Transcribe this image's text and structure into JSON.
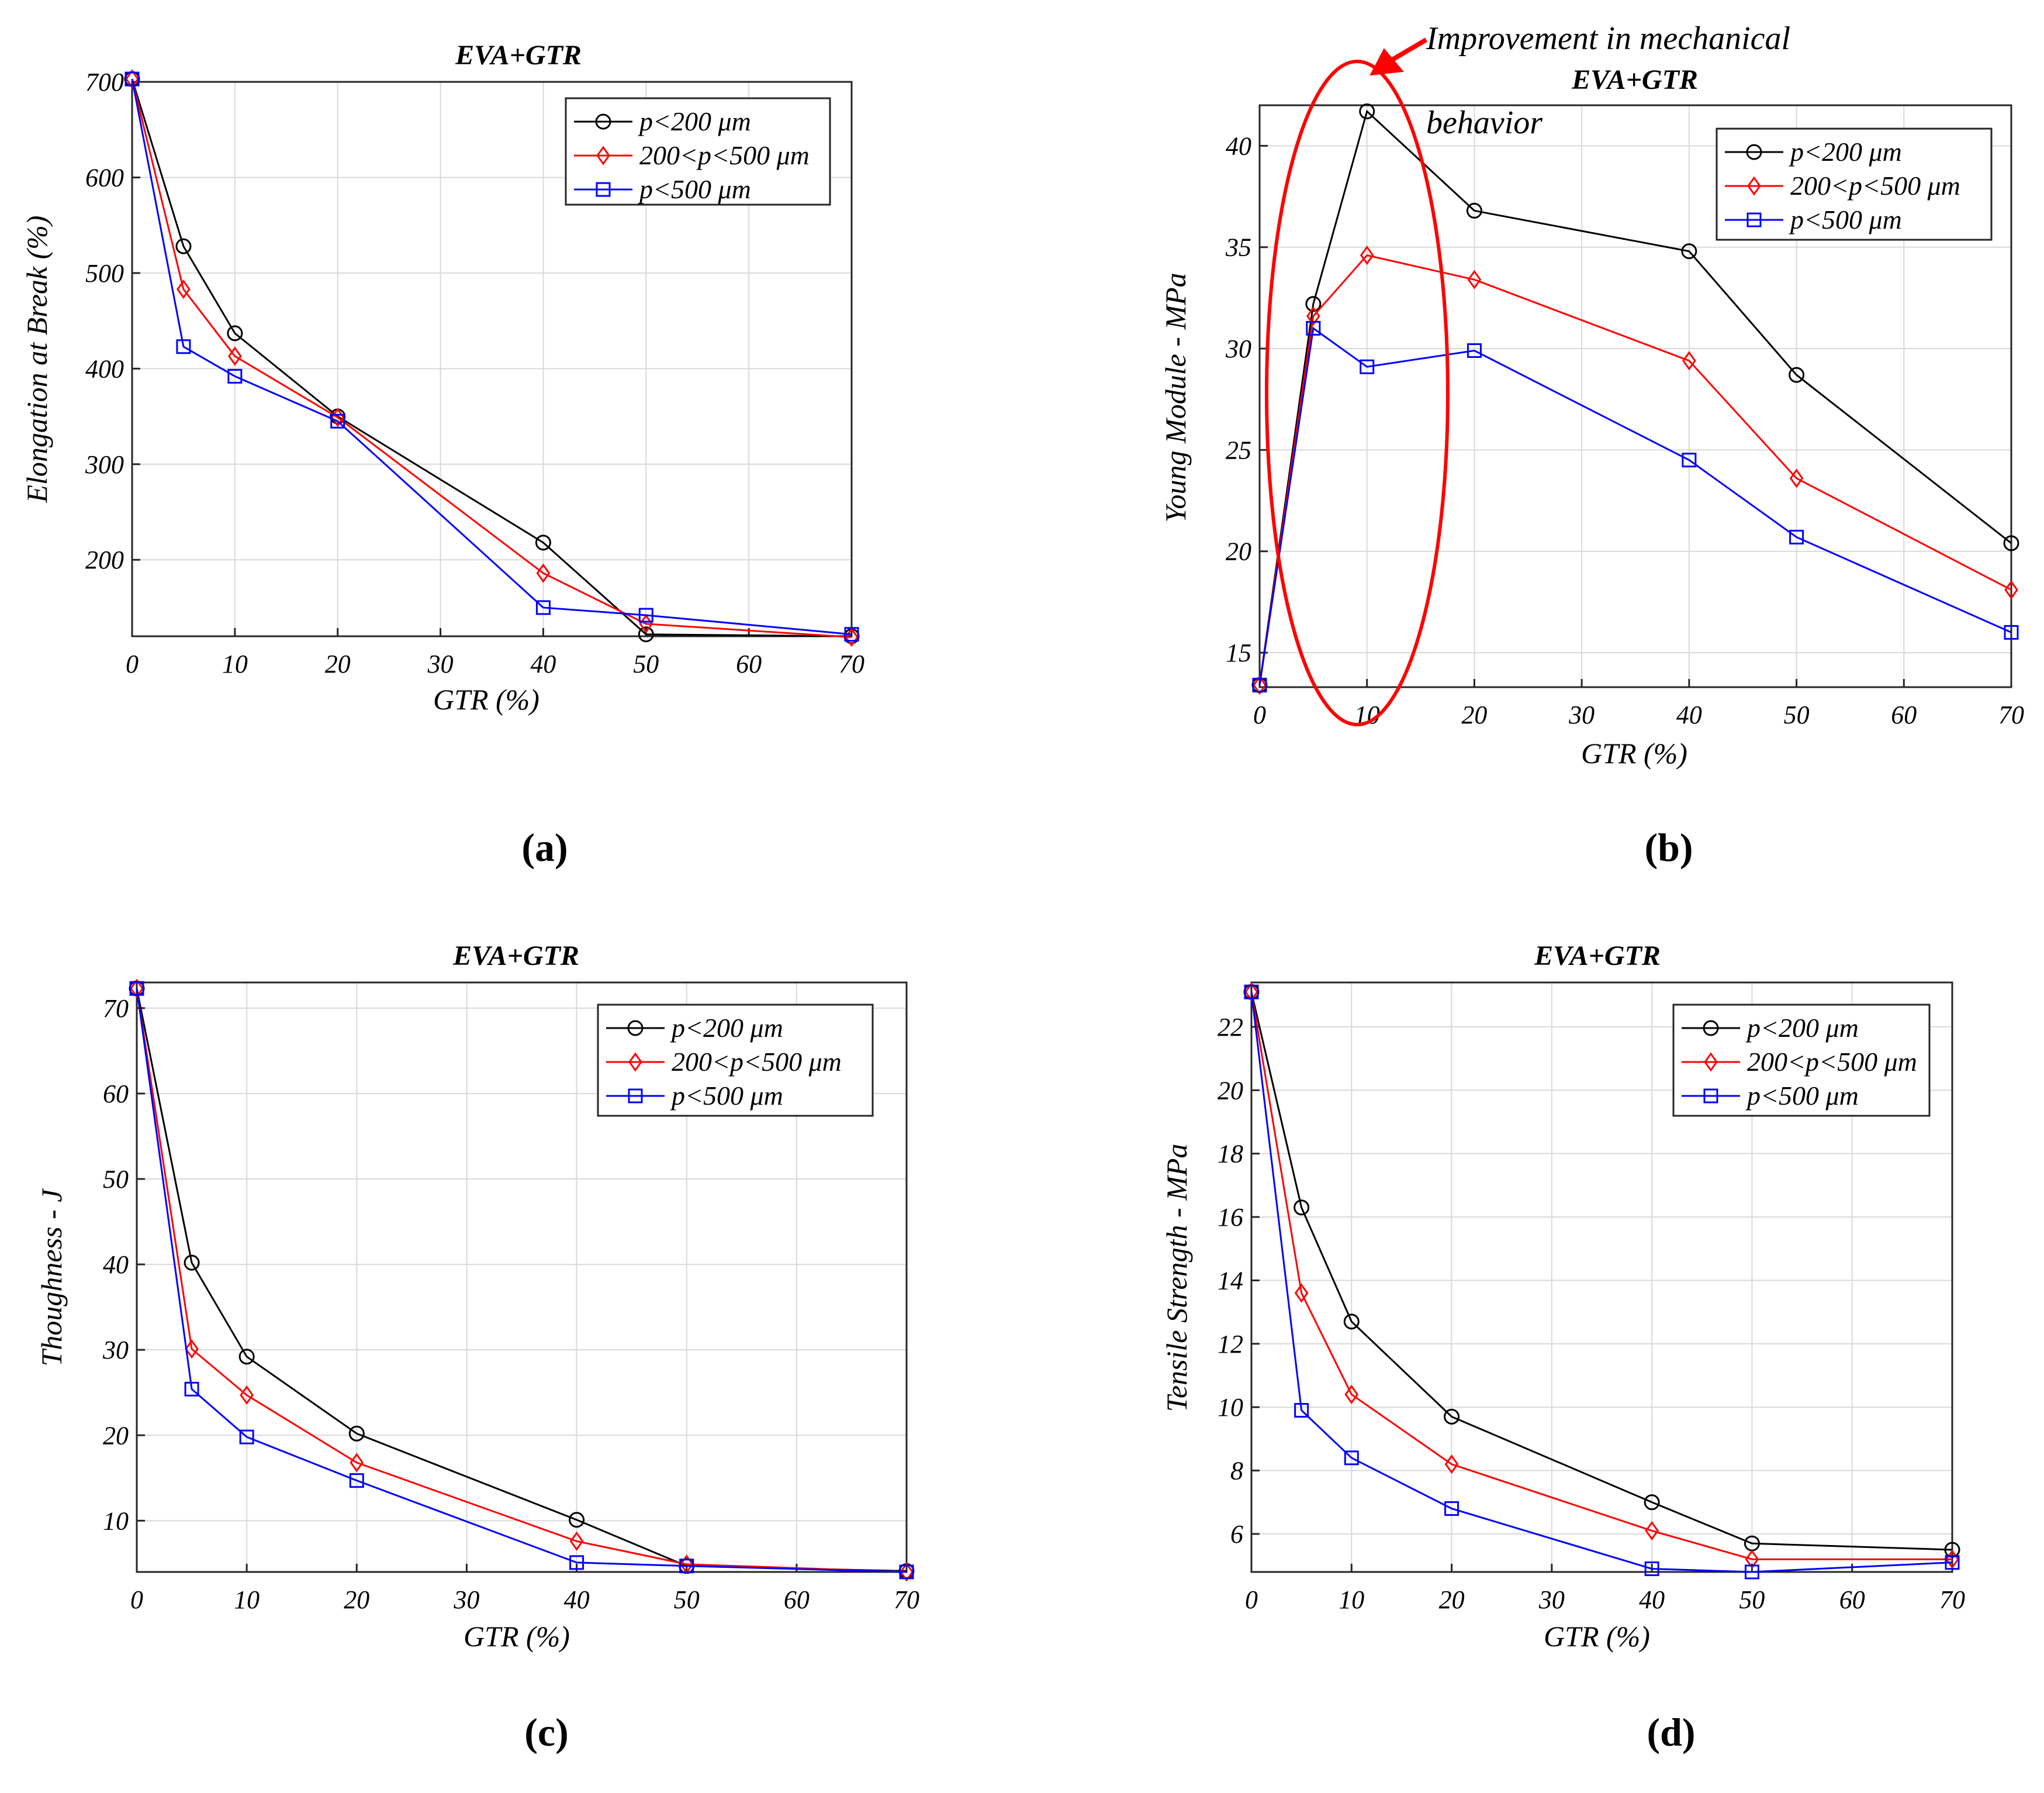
{
  "chart_data": [
    {
      "id": "a",
      "type": "line",
      "panel_label": "(a)",
      "title": "EVA+GTR",
      "xlabel": "GTR (%)",
      "ylabel": "Elongation at Break (%)",
      "xlim": [
        0,
        70
      ],
      "ylim": [
        120,
        700
      ],
      "xticks": [
        0,
        10,
        20,
        30,
        40,
        50,
        60,
        70
      ],
      "yticks": [
        200,
        300,
        400,
        500,
        600,
        700
      ],
      "grid": true,
      "legend_position": "top-right",
      "series": [
        {
          "name": "p<200 μm",
          "marker": "circle",
          "color": "#000000",
          "x": [
            0,
            5,
            10,
            20,
            40,
            50,
            70
          ],
          "y": [
            703,
            528,
            437,
            350,
            218,
            122,
            120
          ]
        },
        {
          "name": "200<p<500 μm",
          "marker": "diamond",
          "color": "#ff0000",
          "x": [
            0,
            5,
            10,
            20,
            40,
            50,
            70
          ],
          "y": [
            703,
            483,
            413,
            349,
            186,
            133,
            119
          ]
        },
        {
          "name": "p<500 μm",
          "marker": "square",
          "color": "#0000ff",
          "x": [
            0,
            5,
            10,
            20,
            40,
            50,
            70
          ],
          "y": [
            703,
            423,
            392,
            345,
            150,
            142,
            122
          ]
        }
      ]
    },
    {
      "id": "b",
      "type": "line",
      "panel_label": "(b)",
      "title": "EVA+GTR",
      "xlabel": "GTR (%)",
      "ylabel": "Young Module - MPa",
      "xlim": [
        0,
        70
      ],
      "ylim": [
        13.3,
        42
      ],
      "xticks": [
        0,
        10,
        20,
        30,
        40,
        50,
        60,
        70
      ],
      "yticks": [
        15,
        20,
        25,
        30,
        35,
        40
      ],
      "grid": true,
      "legend_position": "top-right",
      "annotation": {
        "line1": "Improvement   in   mechanical",
        "line2": "behavior"
      },
      "series": [
        {
          "name": "p<200 μm",
          "marker": "circle",
          "color": "#000000",
          "x": [
            0,
            5,
            10,
            20,
            40,
            50,
            70
          ],
          "y": [
            13.4,
            32.2,
            41.7,
            36.8,
            34.8,
            28.7,
            20.4
          ]
        },
        {
          "name": "200<p<500 μm",
          "marker": "diamond",
          "color": "#ff0000",
          "x": [
            0,
            5,
            10,
            20,
            40,
            50,
            70
          ],
          "y": [
            13.4,
            31.6,
            34.6,
            33.4,
            29.4,
            23.6,
            18.1
          ]
        },
        {
          "name": "p<500 μm",
          "marker": "square",
          "color": "#0000ff",
          "x": [
            0,
            5,
            10,
            20,
            40,
            50,
            70
          ],
          "y": [
            13.4,
            31.0,
            29.1,
            29.9,
            24.5,
            20.7,
            16.0
          ]
        }
      ]
    },
    {
      "id": "c",
      "type": "line",
      "panel_label": "(c)",
      "title": "EVA+GTR",
      "xlabel": "GTR (%)",
      "ylabel": "Thoughness - J",
      "xlim": [
        0,
        70
      ],
      "ylim": [
        4,
        73
      ],
      "xticks": [
        0,
        10,
        20,
        30,
        40,
        50,
        60,
        70
      ],
      "yticks": [
        10,
        20,
        30,
        40,
        50,
        60,
        70
      ],
      "grid": true,
      "legend_position": "top-right",
      "series": [
        {
          "name": "p<200 μm",
          "marker": "circle",
          "color": "#000000",
          "x": [
            0,
            5,
            10,
            20,
            40,
            50,
            70
          ],
          "y": [
            72.3,
            40.2,
            29.2,
            20.2,
            10.1,
            4.7,
            4.1
          ]
        },
        {
          "name": "200<p<500 μm",
          "marker": "diamond",
          "color": "#ff0000",
          "x": [
            0,
            5,
            10,
            20,
            40,
            50,
            70
          ],
          "y": [
            72.3,
            30.1,
            24.7,
            16.8,
            7.6,
            4.9,
            4.0
          ]
        },
        {
          "name": "p<500 μm",
          "marker": "square",
          "color": "#0000ff",
          "x": [
            0,
            5,
            10,
            20,
            40,
            50,
            70
          ],
          "y": [
            72.3,
            25.4,
            19.8,
            14.7,
            5.1,
            4.7,
            4.0
          ]
        }
      ]
    },
    {
      "id": "d",
      "type": "line",
      "panel_label": "(d)",
      "title": "EVA+GTR",
      "xlabel": "GTR (%)",
      "ylabel": "Tensile Strength - MPa",
      "xlim": [
        0,
        70
      ],
      "ylim": [
        4.8,
        23.4
      ],
      "xticks": [
        0,
        10,
        20,
        30,
        40,
        50,
        60,
        70
      ],
      "yticks": [
        6,
        8,
        10,
        12,
        14,
        16,
        18,
        20,
        22
      ],
      "grid": true,
      "legend_position": "top-right",
      "series": [
        {
          "name": "p<200 μm",
          "marker": "circle",
          "color": "#000000",
          "x": [
            0,
            5,
            10,
            20,
            40,
            50,
            70
          ],
          "y": [
            23.1,
            16.3,
            12.7,
            9.7,
            7.0,
            5.7,
            5.5
          ]
        },
        {
          "name": "200<p<500 μm",
          "marker": "diamond",
          "color": "#ff0000",
          "x": [
            0,
            5,
            10,
            20,
            40,
            50,
            70
          ],
          "y": [
            23.1,
            13.6,
            10.4,
            8.2,
            6.1,
            5.2,
            5.2
          ]
        },
        {
          "name": "p<500 μm",
          "marker": "square",
          "color": "#0000ff",
          "x": [
            0,
            5,
            10,
            20,
            40,
            50,
            70
          ],
          "y": [
            23.1,
            9.9,
            8.4,
            6.8,
            4.9,
            4.8,
            5.1
          ]
        }
      ]
    }
  ]
}
